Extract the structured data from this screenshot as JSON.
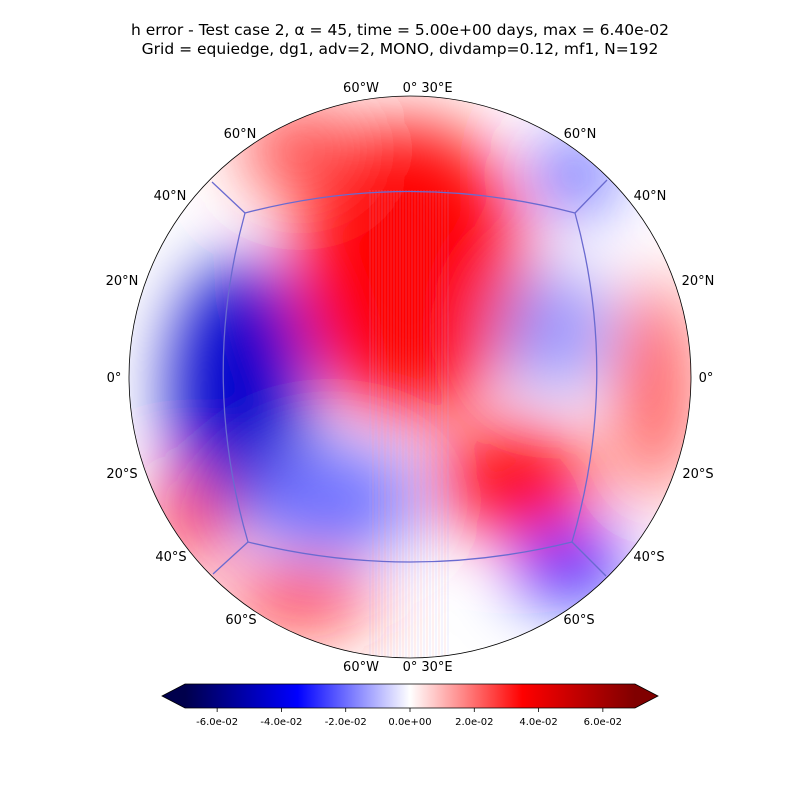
{
  "chart_data": {
    "type": "heatmap",
    "title_line1": "h error - Test case 2, α = 45, time = 5.00e+00 days, max = 6.40e-02",
    "title_line2": "Grid = equiedge, dg1, adv=2, MONO, divdamp=0.12, mf1, N=192",
    "projection": "orthographic globe view",
    "colormap": "seismic (blue–white–red), extended both ends",
    "colors": {
      "min": "#00004c",
      "neg": "#0000ff",
      "zero": "#ffffff",
      "pos": "#ff0000",
      "max": "#800000"
    },
    "clim": [
      -0.07,
      0.07
    ],
    "colorbar_ticks": [
      "-6.0e-02",
      "-4.0e-02",
      "-2.0e-02",
      "0.0e+00",
      "2.0e-02",
      "4.0e-02",
      "6.0e-02"
    ],
    "colorbar_tick_values": [
      -0.06,
      -0.04,
      -0.02,
      0.0,
      0.02,
      0.04,
      0.06
    ],
    "lat_labels_left": [
      "60°N",
      "40°N",
      "20°N",
      "0°",
      "20°S",
      "40°S",
      "60°S"
    ],
    "lat_labels_right": [
      "60°N",
      "40°N",
      "20°N",
      "0°",
      "20°S",
      "40°S",
      "60°S"
    ],
    "lon_labels_top": [
      "60°W",
      "0°",
      "30°E"
    ],
    "lon_labels_bottom": [
      "60°W",
      "0°",
      "30°E"
    ],
    "field_blobs": [
      {
        "region": "upper center",
        "value": 0.035
      },
      {
        "region": "upper-left band",
        "value": 0.025
      },
      {
        "region": "left equator",
        "value": -0.045
      },
      {
        "region": "lower-left",
        "value": -0.02
      },
      {
        "region": "right center",
        "value": -0.015
      },
      {
        "region": "lower right",
        "value": 0.035
      },
      {
        "region": "bottom left",
        "value": 0.03
      },
      {
        "region": "bottom right",
        "value": -0.035
      },
      {
        "region": "right edge",
        "value": 0.025
      },
      {
        "region": "upper-right corner",
        "value": -0.025
      },
      {
        "region": "left lower edge",
        "value": 0.03
      }
    ]
  }
}
